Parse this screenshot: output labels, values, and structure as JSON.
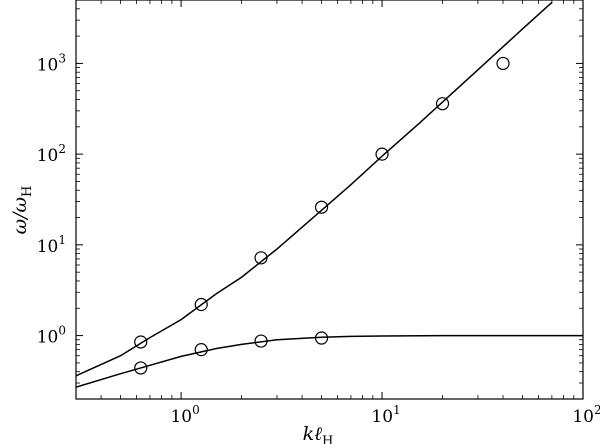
{
  "chart_data": {
    "type": "line",
    "xlabel": "kℓ_H",
    "ylabel": "ω/ω_H",
    "xscale": "log",
    "yscale": "log",
    "xlim": [
      0.3,
      100
    ],
    "ylim": [
      0.2,
      5000
    ],
    "grid": false,
    "x_ticks": [
      {
        "value": 1,
        "base": "10",
        "exp": "0"
      },
      {
        "value": 10,
        "base": "10",
        "exp": "1"
      },
      {
        "value": 100,
        "base": "10",
        "exp": "2"
      }
    ],
    "y_ticks": [
      {
        "value": 1,
        "base": "10",
        "exp": "0"
      },
      {
        "value": 10,
        "base": "10",
        "exp": "1"
      },
      {
        "value": 100,
        "base": "10",
        "exp": "2"
      },
      {
        "value": 1000,
        "base": "10",
        "exp": "3"
      }
    ],
    "series": [
      {
        "style": "line",
        "x": [
          0.3,
          0.5,
          0.7,
          1.0,
          1.5,
          2,
          3,
          5,
          7,
          10,
          15,
          20,
          30,
          50,
          70
        ],
        "y": [
          0.36,
          0.6,
          0.95,
          1.5,
          2.9,
          4.4,
          9,
          24,
          46,
          95,
          210,
          375,
          850,
          2400,
          4700
        ]
      },
      {
        "style": "line",
        "x": [
          0.3,
          0.5,
          0.7,
          1.0,
          1.5,
          2,
          3,
          5,
          7,
          10,
          20,
          50,
          100
        ],
        "y": [
          0.27,
          0.38,
          0.47,
          0.59,
          0.72,
          0.8,
          0.9,
          0.96,
          0.98,
          0.99,
          1.0,
          1.0,
          1.0
        ]
      },
      {
        "style": "markers",
        "x": [
          0.63,
          1.26,
          2.5,
          5,
          10,
          20,
          40
        ],
        "y": [
          0.85,
          2.2,
          7.2,
          26,
          100,
          360,
          1000
        ]
      },
      {
        "style": "markers",
        "x": [
          0.63,
          1.26,
          2.5,
          5
        ],
        "y": [
          0.44,
          0.7,
          0.87,
          0.94
        ]
      }
    ]
  }
}
